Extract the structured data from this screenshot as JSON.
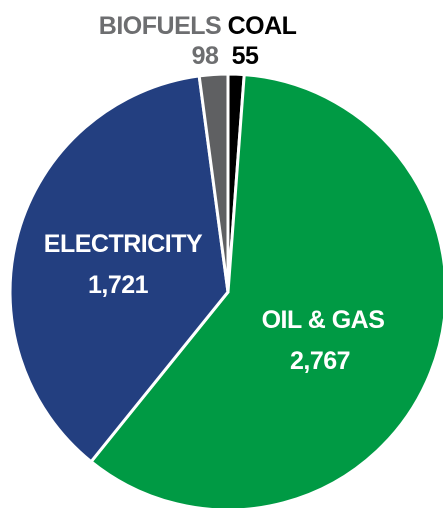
{
  "chart_data": {
    "type": "pie",
    "slices": [
      {
        "label": "COAL",
        "value": 55,
        "value_text": "55",
        "color": "#000000",
        "label_color": "#000000"
      },
      {
        "label": "OIL & GAS",
        "value": 2767,
        "value_text": "2,767",
        "color": "#009a44",
        "label_color": "#ffffff"
      },
      {
        "label": "ELECTRICITY",
        "value": 1721,
        "value_text": "1,721",
        "color": "#233f80",
        "label_color": "#ffffff"
      },
      {
        "label": "BIOFUELS",
        "value": 98,
        "value_text": "98",
        "color": "#5f6062",
        "label_color": "#6d6e70"
      }
    ],
    "start_angle_deg": 0,
    "direction": "clockwise"
  }
}
